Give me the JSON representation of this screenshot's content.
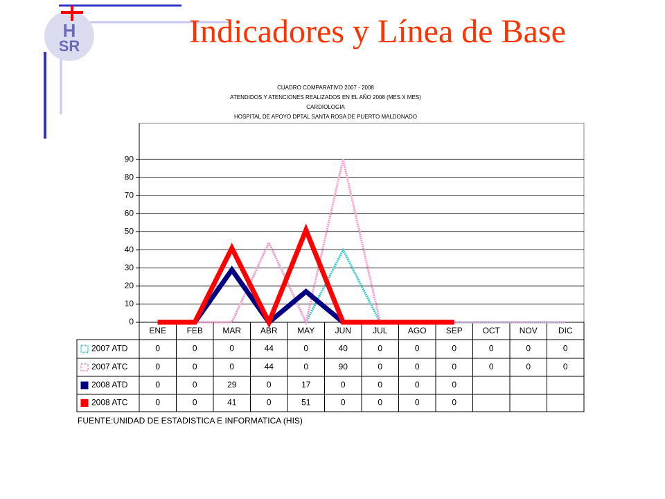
{
  "header": {
    "title": "Indicadores y Línea de Base",
    "logo_top": "H",
    "logo_bottom": "SR"
  },
  "chart_data": {
    "type": "line",
    "title_lines": [
      "CUADRO COMPARATIVO 2007 - 2008",
      "ATENDIDOS Y ATENCIONES REALIZADOS EN EL AÑO 2008 (MES X MES)",
      "CARDIOLOGIA",
      "HOSPITAL DE APOYO DPTAL SANTA ROSA DE PUERTO MALDONADO"
    ],
    "categories": [
      "ENE",
      "FEB",
      "MAR",
      "ABR",
      "MAY",
      "JUN",
      "JUL",
      "AGO",
      "SEP",
      "OCT",
      "NOV",
      "DIC"
    ],
    "series": [
      {
        "name": "2007 ATD",
        "color": "#33cccc",
        "style": "dotted",
        "values": [
          0,
          0,
          0,
          44,
          0,
          40,
          0,
          0,
          0,
          0,
          0,
          0
        ]
      },
      {
        "name": "2007 ATC",
        "color": "#ff99cc",
        "style": "dotted",
        "values": [
          0,
          0,
          0,
          44,
          0,
          90,
          0,
          0,
          0,
          0,
          0,
          0
        ]
      },
      {
        "name": "2008 ATD",
        "color": "#000080",
        "style": "solid",
        "values": [
          0,
          0,
          29,
          0,
          17,
          0,
          0,
          0,
          0,
          null,
          null,
          null
        ]
      },
      {
        "name": "2008 ATC",
        "color": "#ff0000",
        "style": "solid",
        "values": [
          0,
          0,
          41,
          0,
          51,
          0,
          0,
          0,
          0,
          null,
          null,
          null
        ]
      }
    ],
    "ylim": [
      0,
      110
    ],
    "yticks": [
      0,
      10,
      20,
      30,
      40,
      50,
      60,
      70,
      80,
      90
    ],
    "grid": true,
    "source": "FUENTE:UNIDAD DE ESTADISTICA E INFORMATICA (HIS)"
  }
}
